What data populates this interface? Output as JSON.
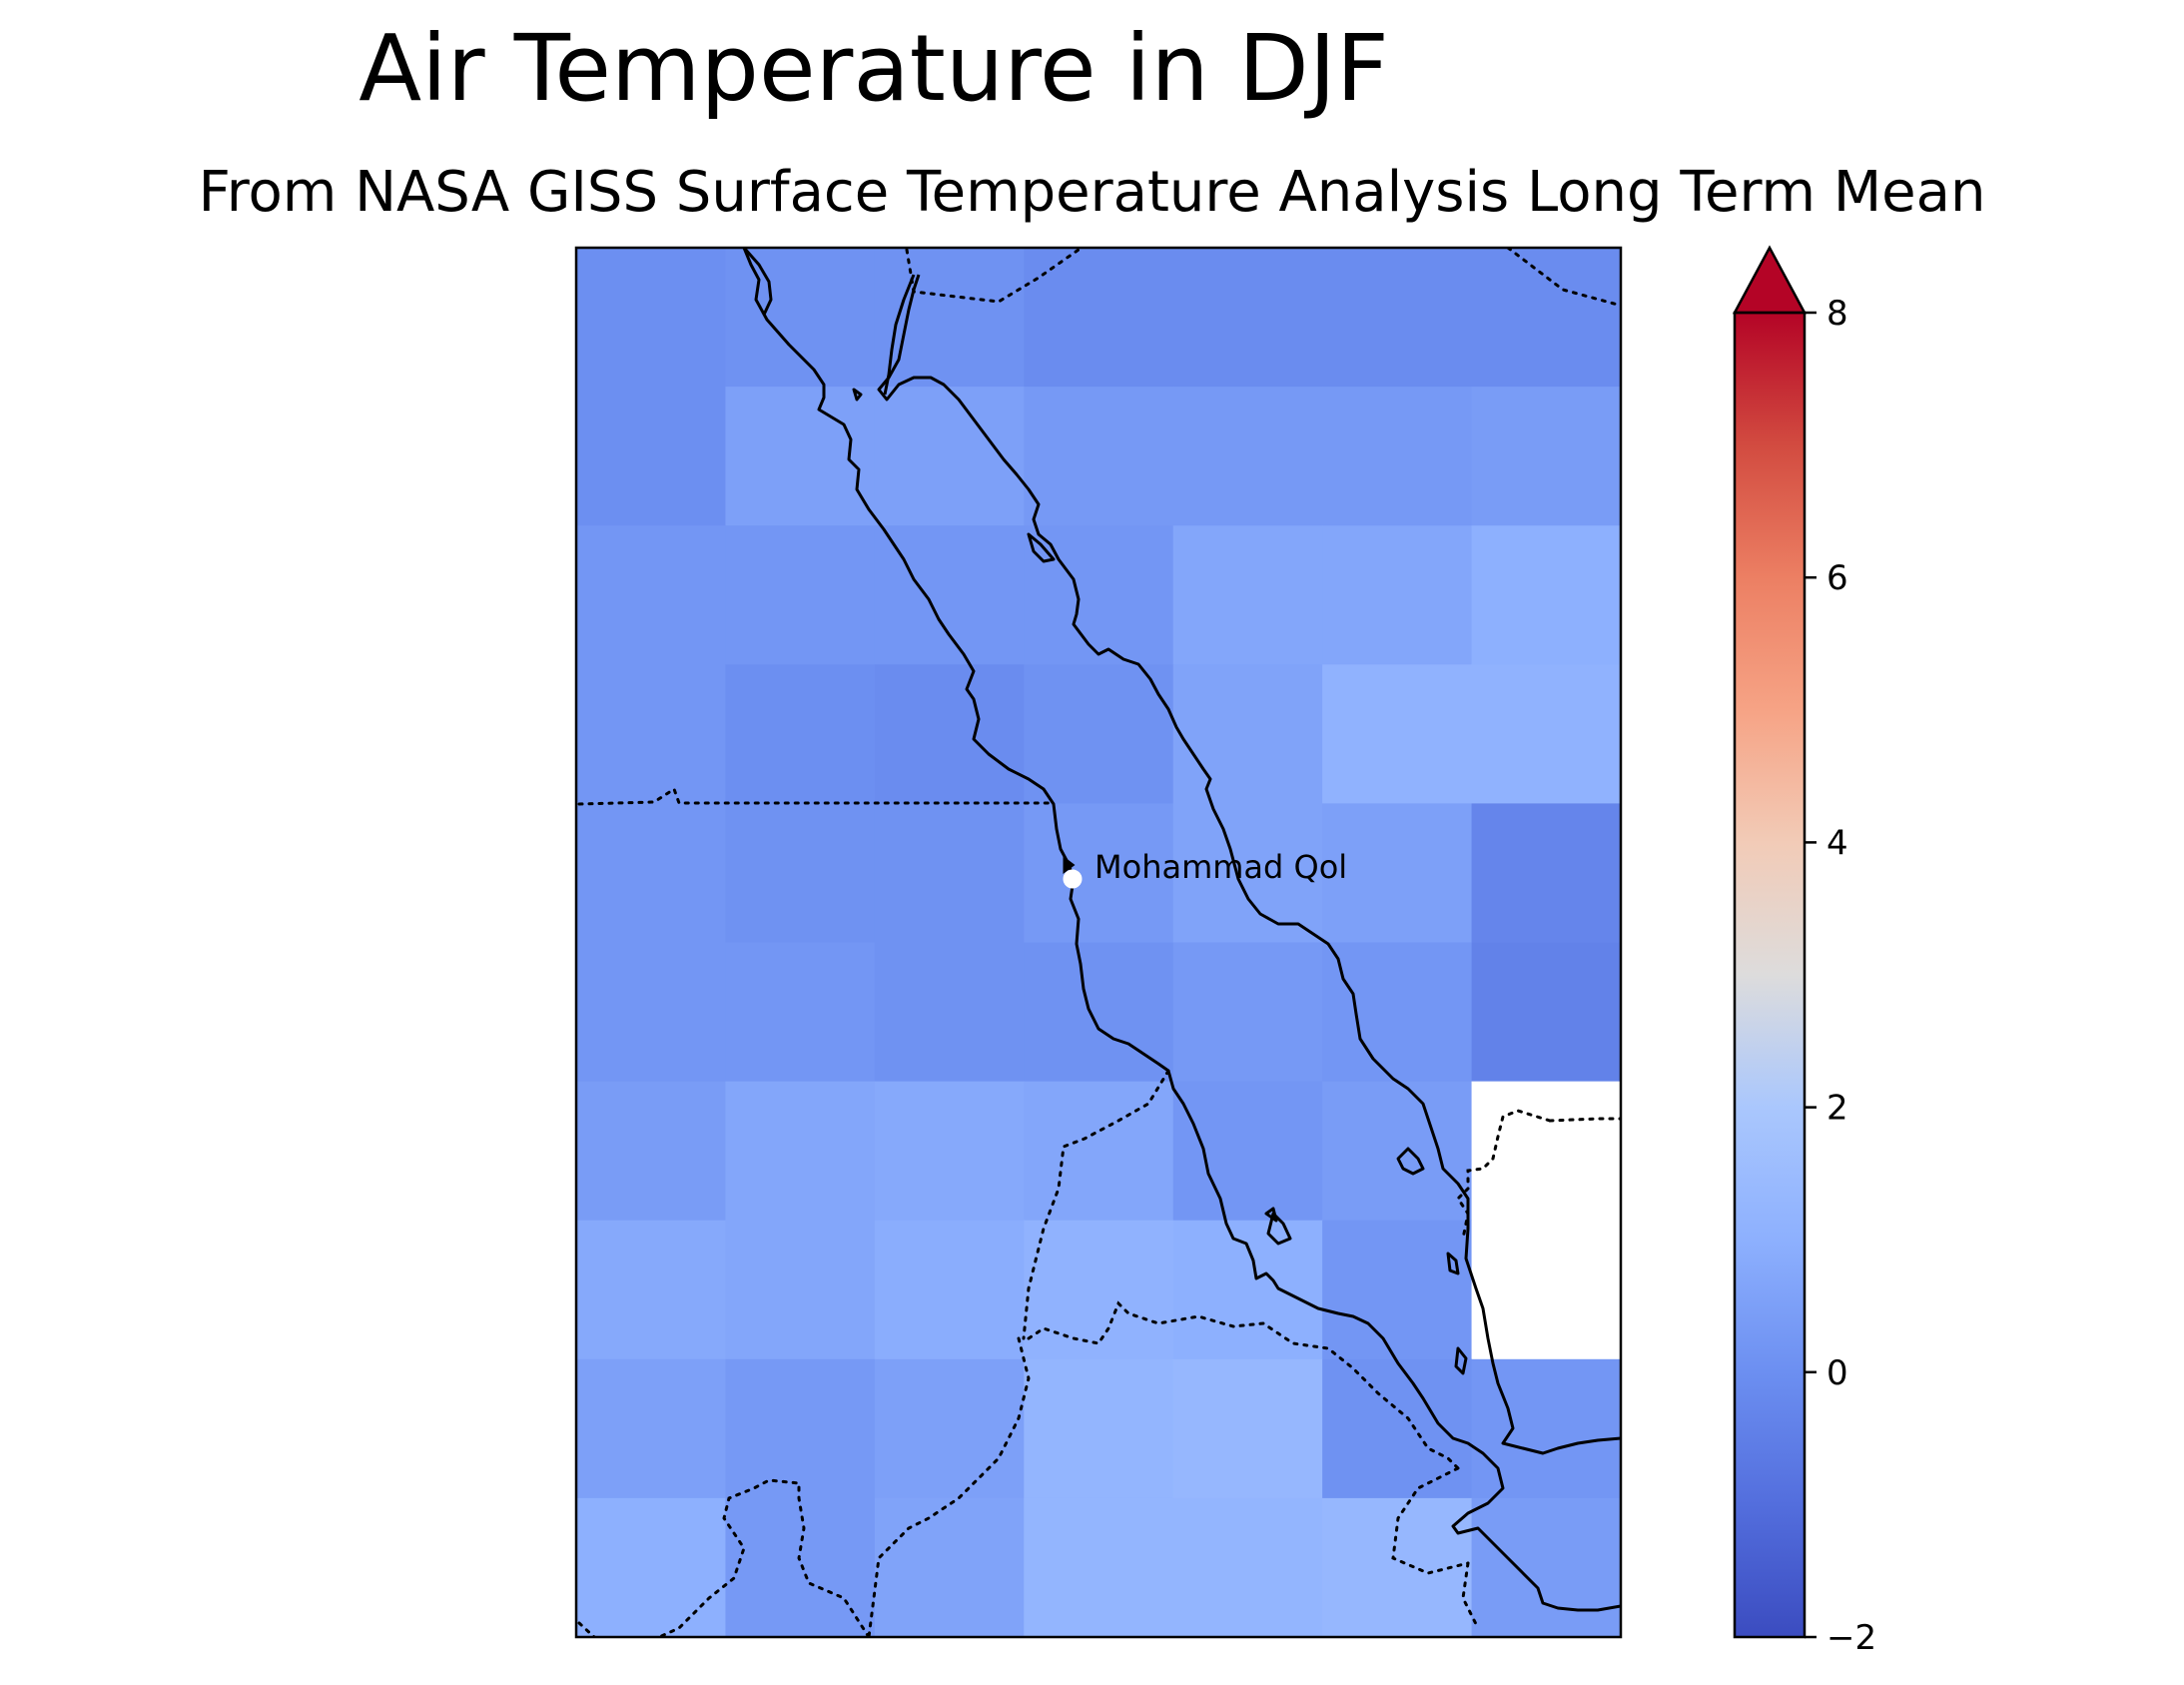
{
  "figure": {
    "title": "Air Temperature in DJF",
    "subtitle": "From NASA GISS Surface Temperature Analysis Long Term Mean"
  },
  "map": {
    "field": "air temperature anomaly, DJF",
    "colormap": "coolwarm",
    "grid": {
      "columns": 7,
      "rows": 10,
      "values": [
        [
          0.0,
          0.1,
          0.1,
          -0.1,
          -0.1,
          -0.1,
          -0.1
        ],
        [
          0.0,
          0.5,
          0.5,
          0.3,
          0.3,
          0.3,
          0.4
        ],
        [
          0.2,
          0.2,
          0.2,
          0.2,
          0.7,
          0.7,
          1.0
        ],
        [
          0.2,
          0.0,
          -0.1,
          0.1,
          0.6,
          1.1,
          1.1
        ],
        [
          0.2,
          0.1,
          0.1,
          0.3,
          0.6,
          0.5,
          -0.3
        ],
        [
          0.2,
          0.2,
          0.1,
          0.1,
          0.3,
          0.2,
          -0.4
        ],
        [
          0.4,
          0.7,
          0.8,
          0.7,
          0.2,
          0.4,
          null
        ],
        [
          0.8,
          0.7,
          0.9,
          1.1,
          1.0,
          0.2,
          null
        ],
        [
          0.5,
          0.3,
          0.5,
          1.2,
          1.3,
          0.1,
          0.2
        ],
        [
          1.0,
          0.3,
          0.6,
          1.2,
          1.2,
          1.3,
          0.4
        ]
      ]
    },
    "place_label": "Mohammad Qol",
    "features": [
      "coastline",
      "country-borders"
    ]
  },
  "colorbar": {
    "min": -2,
    "max": 8,
    "extend": "max",
    "ticks": [
      "−2",
      "0",
      "2",
      "4",
      "6",
      "8"
    ]
  },
  "colors": {
    "background": "#ffffff",
    "frame": "#000000",
    "marker": "#ffffff"
  }
}
